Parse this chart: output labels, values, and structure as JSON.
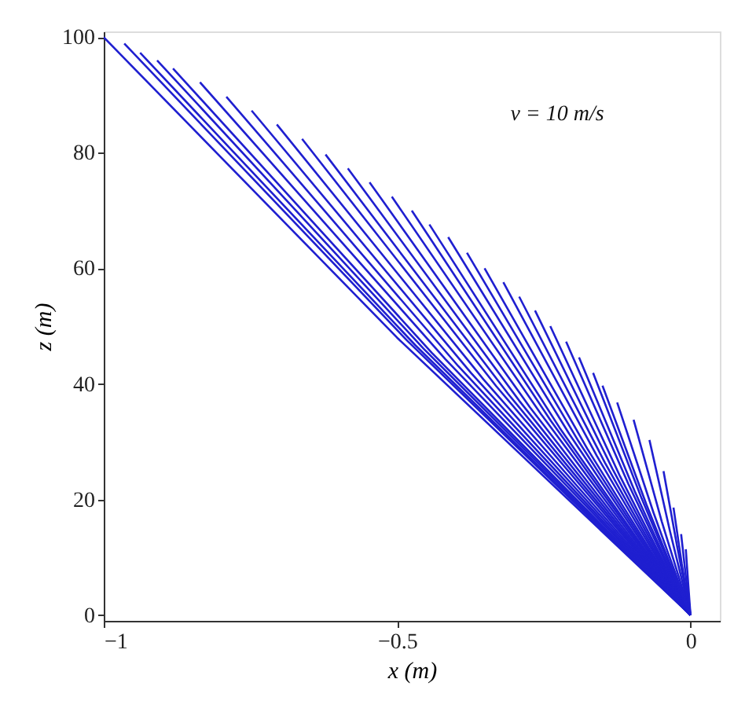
{
  "chart_data": {
    "type": "line",
    "xlabel": "x (m)",
    "ylabel": "z (m)",
    "annotations": [
      "v = 10 m/s"
    ],
    "xlim": [
      -1,
      0.05
    ],
    "ylim": [
      -1,
      101
    ],
    "xticks": [
      -1,
      -0.5,
      0
    ],
    "yticks": [
      0,
      20,
      40,
      60,
      80,
      100
    ],
    "grid": false,
    "legend": false,
    "series": [
      {
        "color": "#1f1fd0",
        "x": [
          0,
          -0.5,
          -1
        ],
        "values": [
          0,
          48,
          100
        ]
      },
      {
        "color": "#1f1fd0",
        "x": [
          0,
          -0.483,
          -0.965
        ],
        "values": [
          0,
          47.5,
          98.9
        ]
      },
      {
        "color": "#1f1fd0",
        "x": [
          0,
          -0.469,
          -0.938
        ],
        "values": [
          0,
          46.7,
          97.3
        ]
      },
      {
        "color": "#1f1fd0",
        "x": [
          0,
          -0.455,
          -0.909
        ],
        "values": [
          0,
          46.1,
          96
        ]
      },
      {
        "color": "#1f1fd0",
        "x": [
          0,
          -0.441,
          -0.882
        ],
        "values": [
          0,
          45.4,
          94.6
        ]
      },
      {
        "color": "#1f1fd0",
        "x": [
          0,
          -0.418,
          -0.836
        ],
        "values": [
          0,
          44.3,
          92.2
        ]
      },
      {
        "color": "#1f1fd0",
        "x": [
          0,
          -0.396,
          -0.791
        ],
        "values": [
          0,
          43.1,
          89.7
        ]
      },
      {
        "color": "#1f1fd0",
        "x": [
          0,
          -0.374,
          -0.748
        ],
        "values": [
          0,
          41.9,
          87.3
        ]
      },
      {
        "color": "#1f1fd0",
        "x": [
          0,
          -0.353,
          -0.705
        ],
        "values": [
          0,
          40.8,
          84.9
        ]
      },
      {
        "color": "#1f1fd0",
        "x": [
          0,
          -0.331,
          -0.662
        ],
        "values": [
          0,
          39.6,
          82.4
        ]
      },
      {
        "color": "#1f1fd0",
        "x": [
          0,
          -0.311,
          -0.622
        ],
        "values": [
          0,
          38.3,
          79.7
        ]
      },
      {
        "color": "#1f1fd0",
        "x": [
          0,
          -0.292,
          -0.584
        ],
        "values": [
          0,
          37.1,
          77.3
        ]
      },
      {
        "color": "#1f1fd0",
        "x": [
          0,
          -0.274,
          -0.547
        ],
        "values": [
          0,
          36,
          74.9
        ]
      },
      {
        "color": "#1f1fd0",
        "x": [
          0,
          -0.255,
          -0.509
        ],
        "values": [
          0,
          34.8,
          72.4
        ]
      },
      {
        "color": "#1f1fd0",
        "x": [
          0,
          -0.238,
          -0.475
        ],
        "values": [
          0,
          33.6,
          70
        ]
      },
      {
        "color": "#1f1fd0",
        "x": [
          0,
          -0.223,
          -0.445
        ],
        "values": [
          0,
          32.4,
          67.6
        ]
      },
      {
        "color": "#1f1fd0",
        "x": [
          0,
          -0.207,
          -0.413
        ],
        "values": [
          0,
          31.4,
          65.4
        ]
      },
      {
        "color": "#1f1fd0",
        "x": [
          0,
          -0.191,
          -0.381
        ],
        "values": [
          0,
          30.1,
          62.7
        ]
      },
      {
        "color": "#1f1fd0",
        "x": [
          0,
          -0.176,
          -0.351
        ],
        "values": [
          0,
          28.8,
          60
        ]
      },
      {
        "color": "#1f1fd0",
        "x": [
          0,
          -0.16,
          -0.319
        ],
        "values": [
          0,
          27.6,
          57.6
        ]
      },
      {
        "color": "#1f1fd0",
        "x": [
          0,
          -0.146,
          -0.292
        ],
        "values": [
          0,
          26.4,
          55.1
        ]
      },
      {
        "color": "#1f1fd0",
        "x": [
          0,
          -0.133,
          -0.265
        ],
        "values": [
          0,
          25.3,
          52.7
        ]
      },
      {
        "color": "#1f1fd0",
        "x": [
          0,
          -0.12,
          -0.239
        ],
        "values": [
          0,
          24,
          50
        ]
      },
      {
        "color": "#1f1fd0",
        "x": [
          0,
          -0.106,
          -0.212
        ],
        "values": [
          0,
          22.7,
          47.3
        ]
      },
      {
        "color": "#1f1fd0",
        "x": [
          0,
          -0.095,
          -0.19
        ],
        "values": [
          0,
          21.4,
          44.6
        ]
      },
      {
        "color": "#1f1fd0",
        "x": [
          0,
          -0.083,
          -0.166
        ],
        "values": [
          0,
          20.1,
          41.9
        ]
      },
      {
        "color": "#1f1fd0",
        "x": [
          0,
          -0.075,
          -0.15
        ],
        "values": [
          0,
          19.1,
          39.7
        ]
      },
      {
        "color": "#1f1fd0",
        "x": [
          0,
          -0.063,
          -0.125
        ],
        "values": [
          0,
          17.7,
          36.8
        ]
      },
      {
        "color": "#1f1fd0",
        "x": [
          0,
          -0.049,
          -0.097
        ],
        "values": [
          0,
          16.2,
          33.8
        ]
      },
      {
        "color": "#1f1fd0",
        "x": [
          0,
          -0.035,
          -0.07
        ],
        "values": [
          0,
          14.5,
          30.3
        ]
      },
      {
        "color": "#1f1fd0",
        "x": [
          0,
          -0.023,
          -0.046
        ],
        "values": [
          0,
          12,
          24.9
        ]
      },
      {
        "color": "#1f1fd0",
        "x": [
          0,
          -0.015,
          -0.029
        ],
        "values": [
          0,
          8.9,
          18.6
        ]
      },
      {
        "color": "#1f1fd0",
        "x": [
          0,
          -0.008,
          -0.016
        ],
        "values": [
          0,
          6.7,
          14
        ]
      },
      {
        "color": "#1f1fd0",
        "x": [
          0,
          -0.004,
          -0.008
        ],
        "values": [
          0,
          5.5,
          11.4
        ]
      }
    ]
  }
}
